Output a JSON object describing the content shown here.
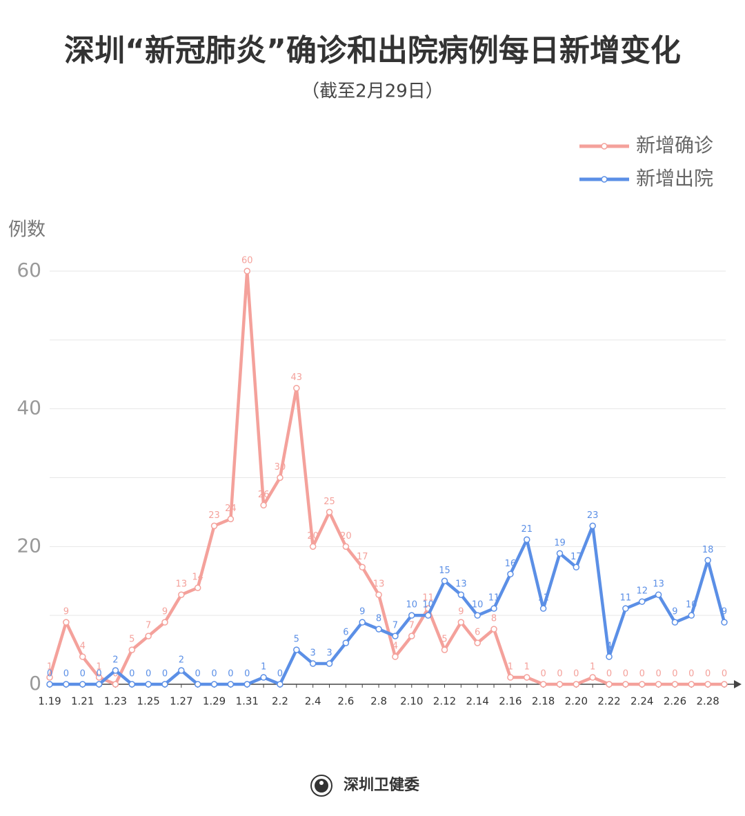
{
  "chart_data": {
    "type": "line",
    "title": "深圳“新冠肺炎”确诊和出院病例每日新增变化",
    "subtitle": "（截至2月29日）",
    "y_label": "例数",
    "source": "深圳卫健委",
    "categories": [
      "1.19",
      null,
      "1.21",
      null,
      "1.23",
      null,
      "1.25",
      null,
      "1.27",
      null,
      "1.29",
      null,
      "1.31",
      null,
      "2.2",
      null,
      "2.4",
      null,
      "2.6",
      null,
      "2.8",
      null,
      "2.10",
      null,
      "2.12",
      null,
      "2.14",
      null,
      "2.16",
      null,
      "2.18",
      null,
      "2.20",
      null,
      "2.22",
      null,
      "2.24",
      null,
      "2.26",
      null,
      "2.28",
      null
    ],
    "series": [
      {
        "name": "新增确诊",
        "color": "#f4a19b",
        "values": [
          1,
          9,
          4,
          1,
          0,
          5,
          7,
          9,
          13,
          14,
          23,
          24,
          60,
          26,
          30,
          43,
          20,
          25,
          20,
          17,
          13,
          4,
          7,
          11,
          5,
          9,
          6,
          8,
          1,
          1,
          0,
          0,
          0,
          1,
          0,
          0,
          0,
          0,
          0,
          0,
          0,
          0
        ]
      },
      {
        "name": "新增出院",
        "color": "#5b8fe6",
        "values": [
          0,
          0,
          0,
          0,
          2,
          0,
          0,
          0,
          2,
          0,
          0,
          0,
          0,
          1,
          0,
          5,
          3,
          3,
          6,
          9,
          8,
          7,
          10,
          10,
          15,
          13,
          10,
          11,
          16,
          21,
          11,
          19,
          17,
          23,
          4,
          11,
          12,
          13,
          9,
          10,
          18,
          9
        ]
      }
    ],
    "ylim": [
      0,
      60
    ],
    "yticks": [
      0,
      20,
      40,
      60
    ],
    "y_minor_grid": [
      10,
      30,
      50
    ],
    "grid": true,
    "legend": "top-right"
  }
}
